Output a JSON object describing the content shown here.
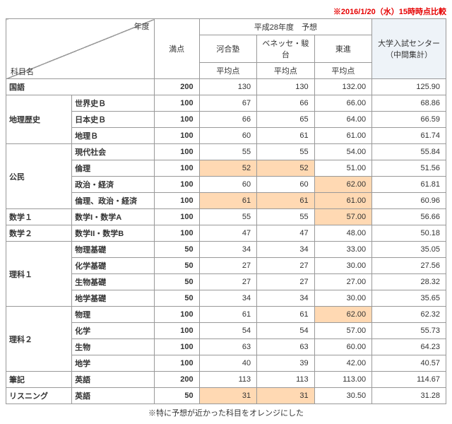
{
  "note_top": "※2016/1/20（水）15時時点比較",
  "note_bottom": "※特に予想が近かった科目をオレンジにした",
  "headers": {
    "diag_top": "年度",
    "diag_bot": "科目名",
    "max": "満点",
    "forecast_group": "平成28年度　予想",
    "center": "大学入試センター（中間集計）",
    "kawai": "河合塾",
    "benesse": "ベネッセ・駿台",
    "toshin": "東進",
    "avg": "平均点"
  },
  "rows": [
    {
      "cat": "国語",
      "subj": "",
      "max": "200",
      "v": [
        "130",
        "130",
        "132.00",
        "125.90"
      ],
      "span": 1,
      "hl": []
    },
    {
      "cat": "地理歴史",
      "subj": "世界史Ｂ",
      "max": "100",
      "v": [
        "67",
        "66",
        "66.00",
        "68.86"
      ],
      "span": 3,
      "hl": []
    },
    {
      "cat": "",
      "subj": "日本史Ｂ",
      "max": "100",
      "v": [
        "66",
        "65",
        "64.00",
        "66.59"
      ],
      "span": 0,
      "hl": []
    },
    {
      "cat": "",
      "subj": "地理Ｂ",
      "max": "100",
      "v": [
        "60",
        "61",
        "61.00",
        "61.74"
      ],
      "span": 0,
      "hl": []
    },
    {
      "cat": "公民",
      "subj": "現代社会",
      "max": "100",
      "v": [
        "55",
        "55",
        "54.00",
        "55.84"
      ],
      "span": 4,
      "hl": []
    },
    {
      "cat": "",
      "subj": "倫理",
      "max": "100",
      "v": [
        "52",
        "52",
        "51.00",
        "51.56"
      ],
      "span": 0,
      "hl": [
        0,
        1
      ]
    },
    {
      "cat": "",
      "subj": "政治・経済",
      "max": "100",
      "v": [
        "60",
        "60",
        "62.00",
        "61.81"
      ],
      "span": 0,
      "hl": [
        2
      ]
    },
    {
      "cat": "",
      "subj": "倫理、政治・経済",
      "max": "100",
      "v": [
        "61",
        "61",
        "61.00",
        "60.96"
      ],
      "span": 0,
      "hl": [
        0,
        1,
        2
      ]
    },
    {
      "cat": "数学１",
      "subj": "数学I・数学A",
      "max": "100",
      "v": [
        "55",
        "55",
        "57.00",
        "56.66"
      ],
      "span": 1,
      "hl": [
        2
      ]
    },
    {
      "cat": "数学２",
      "subj": "数学II・数学B",
      "max": "100",
      "v": [
        "47",
        "47",
        "48.00",
        "50.18"
      ],
      "span": 1,
      "hl": []
    },
    {
      "cat": "理科１",
      "subj": "物理基礎",
      "max": "50",
      "v": [
        "34",
        "34",
        "33.00",
        "35.05"
      ],
      "span": 4,
      "hl": []
    },
    {
      "cat": "",
      "subj": "化学基礎",
      "max": "50",
      "v": [
        "27",
        "27",
        "30.00",
        "27.56"
      ],
      "span": 0,
      "hl": []
    },
    {
      "cat": "",
      "subj": "生物基礎",
      "max": "50",
      "v": [
        "27",
        "27",
        "27.00",
        "28.32"
      ],
      "span": 0,
      "hl": []
    },
    {
      "cat": "",
      "subj": "地学基礎",
      "max": "50",
      "v": [
        "34",
        "34",
        "30.00",
        "35.65"
      ],
      "span": 0,
      "hl": []
    },
    {
      "cat": "理科２",
      "subj": "物理",
      "max": "100",
      "v": [
        "61",
        "61",
        "62.00",
        "62.32"
      ],
      "span": 4,
      "hl": [
        2
      ]
    },
    {
      "cat": "",
      "subj": "化学",
      "max": "100",
      "v": [
        "54",
        "54",
        "57.00",
        "55.73"
      ],
      "span": 0,
      "hl": []
    },
    {
      "cat": "",
      "subj": "生物",
      "max": "100",
      "v": [
        "63",
        "63",
        "60.00",
        "64.23"
      ],
      "span": 0,
      "hl": []
    },
    {
      "cat": "",
      "subj": "地学",
      "max": "100",
      "v": [
        "40",
        "39",
        "42.00",
        "40.57"
      ],
      "span": 0,
      "hl": []
    },
    {
      "cat": "筆記",
      "subj": "英語",
      "max": "200",
      "v": [
        "113",
        "113",
        "113.00",
        "114.67"
      ],
      "span": 1,
      "hl": []
    },
    {
      "cat": "リスニング",
      "subj": "英語",
      "max": "50",
      "v": [
        "31",
        "31",
        "30.50",
        "31.28"
      ],
      "span": 1,
      "hl": [
        0,
        1
      ]
    }
  ]
}
